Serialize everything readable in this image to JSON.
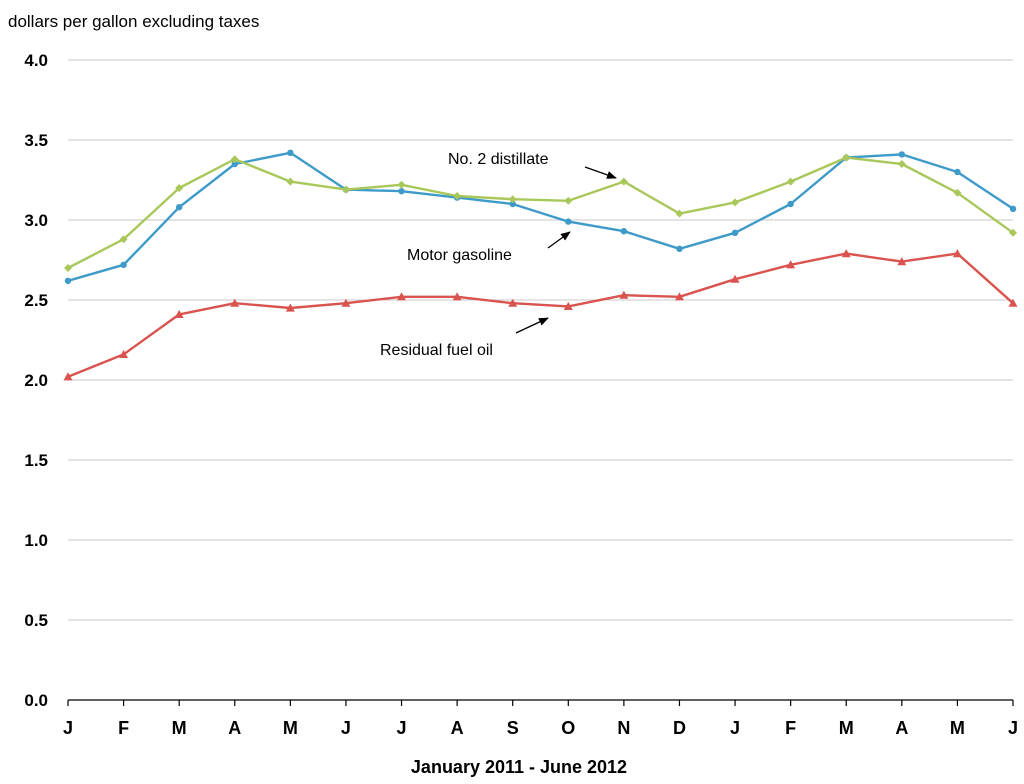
{
  "chart_data": {
    "type": "line",
    "title": "",
    "unit_label": "dollars per gallon excluding taxes",
    "xlabel": "January 2011 - June 2012",
    "ylabel": "",
    "categories": [
      "J",
      "F",
      "M",
      "A",
      "M",
      "J",
      "J",
      "A",
      "S",
      "O",
      "N",
      "D",
      "J",
      "F",
      "M",
      "A",
      "M",
      "J"
    ],
    "ylim": [
      0,
      4
    ],
    "yticks": [
      0,
      0.5,
      1,
      1.5,
      2,
      2.5,
      3,
      3.5,
      4
    ],
    "ytick_labels": [
      "0.0",
      "0.5",
      "1.0",
      "1.5",
      "2.0",
      "2.5",
      "3.0",
      "3.5",
      "4.0"
    ],
    "grid": true,
    "legend": "none",
    "series": [
      {
        "name": "Motor gasoline",
        "color": "#3e9bc9",
        "marker": "circle",
        "values": [
          2.62,
          2.72,
          3.08,
          3.35,
          3.42,
          3.19,
          3.18,
          3.14,
          3.1,
          2.99,
          2.93,
          2.82,
          2.92,
          3.1,
          3.39,
          3.41,
          3.3,
          3.07
        ]
      },
      {
        "name": "No. 2 distillate",
        "color": "#a9c75a",
        "marker": "diamond",
        "values": [
          2.7,
          2.88,
          3.2,
          3.38,
          3.24,
          3.19,
          3.22,
          3.15,
          3.13,
          3.12,
          3.24,
          3.04,
          3.11,
          3.24,
          3.39,
          3.35,
          3.17,
          2.92
        ]
      },
      {
        "name": "Residual fuel oil",
        "color": "#d9534f",
        "marker": "triangle",
        "values": [
          2.02,
          2.16,
          2.41,
          2.48,
          2.45,
          2.48,
          2.52,
          2.52,
          2.48,
          2.46,
          2.53,
          2.52,
          2.63,
          2.72,
          2.79,
          2.74,
          2.79,
          2.48
        ]
      }
    ],
    "annotations": [
      {
        "text": "No. 2 distillate",
        "series": "No. 2 distillate"
      },
      {
        "text": "Motor gasoline",
        "series": "Motor gasoline"
      },
      {
        "text": "Residual fuel oil",
        "series": "Residual fuel oil"
      }
    ]
  }
}
